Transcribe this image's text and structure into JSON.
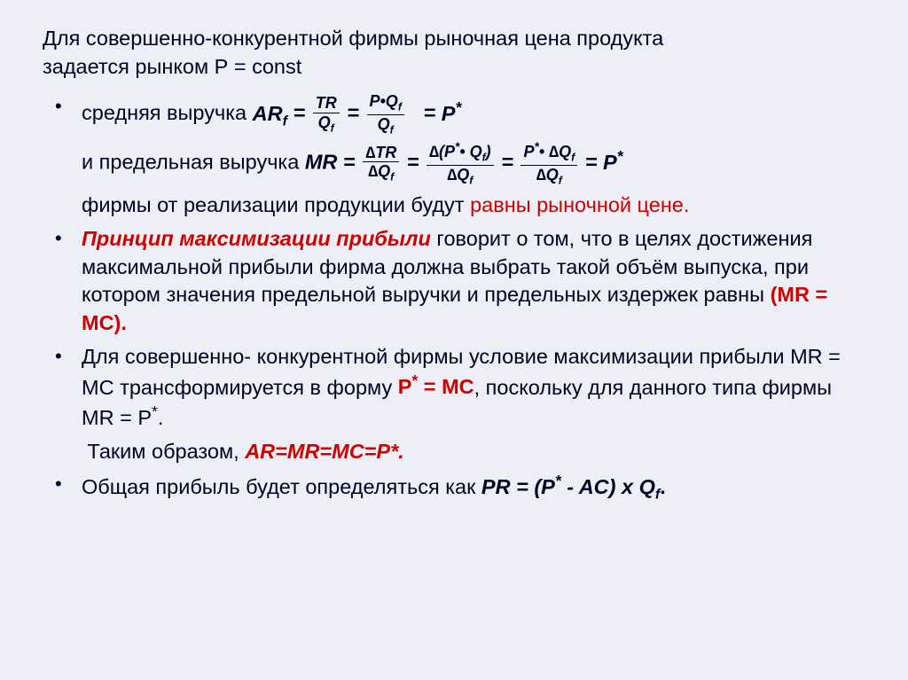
{
  "colors": {
    "background": "#eeeff6",
    "text": "#000020",
    "red": "#cc0000"
  },
  "title": {
    "line1": "Для совершенно-конкурентной фирмы рыночная цена продукта",
    "line2": "задается рынком Р = const"
  },
  "b1": {
    "pre": "средняя выручка    ",
    "AR": "AR",
    "f": "f",
    "eq": " = ",
    "f1n": "TR",
    "f1d": "Q",
    "f2n_a": "P•Q",
    "f2d": "Q",
    "Pstar": "P",
    "star": "*"
  },
  "b2": {
    "pre": "и предельная выручка ",
    "MR": "MR",
    "eq": " = ",
    "f1n": "∆TR",
    "f1d": "∆Q",
    "f2n": "∆(P",
    "f2n2": "• Q",
    "f2n3": ")",
    "f2d": "∆Q",
    "f3n": "P",
    "f3n2": "• ∆Q",
    "f3d": "∆Q",
    "Pstar": "P",
    "star": "*"
  },
  "b3": {
    "a": "фирмы от реализации продукции  будут ",
    "b": "равны рыночной цене."
  },
  "b4": {
    "a": "Принцип максимизации прибыли",
    "b": " говорит о том, что в целях достижения максимальной прибыли фирма должна выбрать такой объём выпуска, при котором значения предельной выручки и предельных издержек равны ",
    "c": "(MR = МС)."
  },
  "b5": {
    "a": "Для  совершенно- конкурентной фирмы условие максимизации прибыли MR = МС трансформируется в форму ",
    "b": "Р",
    "c": " = MC",
    "d": ", поскольку для данного типа фирмы MR = Р",
    "e": "."
  },
  "b6": {
    "a": "Таким образом, ",
    "b": "AR=MR=MC=P*."
  },
  "b7": {
    "a": "Общая прибыль будет определяться как  ",
    "b": "PR = (P",
    "c": " - AC) х Q",
    "d": "."
  },
  "sub_f": "f"
}
